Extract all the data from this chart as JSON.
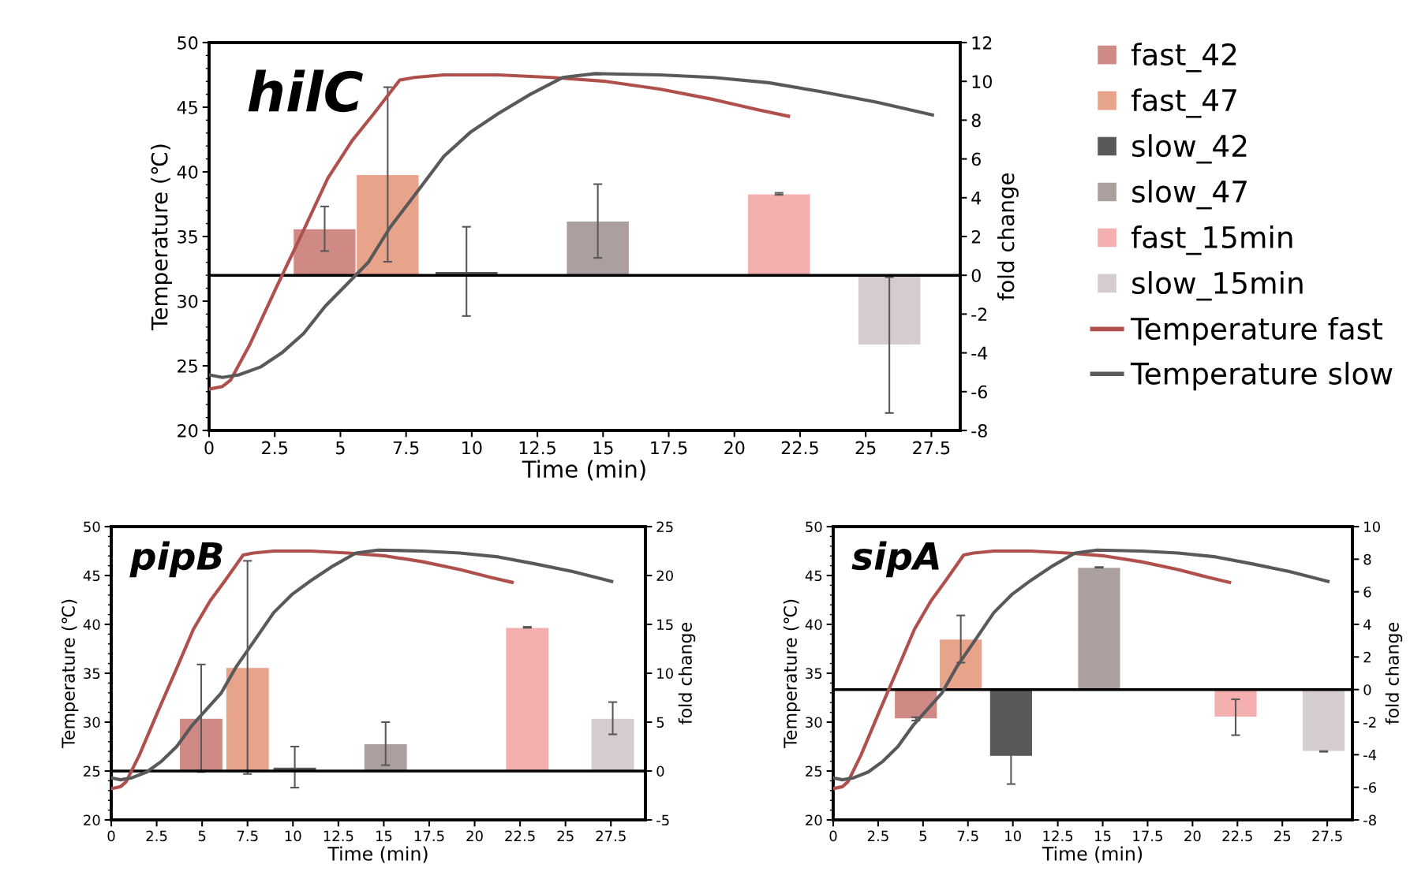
{
  "chart_data": [
    {
      "type": "bar",
      "title": "hilC",
      "xlabel": "Time (min)",
      "ylabel": "Temperature (℃)",
      "y2label": "fold change",
      "xlim": [
        0,
        28.6
      ],
      "xticks": [
        0,
        2.5,
        5,
        7.5,
        10,
        12.5,
        15,
        17.5,
        20,
        22.5,
        25,
        27.5
      ],
      "ylim": [
        20,
        50
      ],
      "yticks": [
        20,
        25,
        30,
        35,
        40,
        45,
        50
      ],
      "y2lim": [
        -8,
        12
      ],
      "y2ticks": [
        -8,
        -6,
        -4,
        -2,
        0,
        2,
        4,
        6,
        8,
        10,
        12
      ],
      "grid": false,
      "legend": "right",
      "ref_lines": [
        {
          "axis": "y2",
          "value": 0,
          "color": "#000000"
        }
      ],
      "series": [
        {
          "name": "fast_42",
          "axis": "y2",
          "color": "#d08a85",
          "x": [
            4.4
          ],
          "values": [
            2.4
          ],
          "errors": [
            1.15
          ]
        },
        {
          "name": "fast_47",
          "axis": "y2",
          "color": "#e8a38b",
          "x": [
            6.8
          ],
          "values": [
            5.2
          ],
          "errors": [
            4.5
          ]
        },
        {
          "name": "slow_42",
          "axis": "y2",
          "color": "#595959",
          "x": [
            9.8
          ],
          "values": [
            0.2
          ],
          "errors": [
            2.3
          ]
        },
        {
          "name": "slow_47",
          "axis": "y2",
          "color": "#aba09e",
          "x": [
            14.8
          ],
          "values": [
            2.8
          ],
          "errors": [
            1.9
          ]
        },
        {
          "name": "fast_15min",
          "axis": "y2",
          "color": "#f4b0ae",
          "x": [
            21.7
          ],
          "values": [
            4.2
          ],
          "errors": [
            0.05
          ]
        },
        {
          "name": "slow_15min",
          "axis": "y2",
          "color": "#d5cdcd",
          "x": [
            25.9
          ],
          "values": [
            -3.6
          ],
          "errors": [
            3.5
          ]
        },
        {
          "name": "Temperature fast",
          "type": "line",
          "axis": "y",
          "color": "#b0504c",
          "x": [
            0,
            0.51,
            0.82,
            1.54,
            2.57,
            3.6,
            4.52,
            5.44,
            6.27,
            7.26,
            7.81,
            8.94,
            11.0,
            13.05,
            15.1,
            17.16,
            19.2,
            20.9,
            22.06
          ],
          "values": [
            23.2,
            23.4,
            23.9,
            26.6,
            31.1,
            35.5,
            39.5,
            42.4,
            44.5,
            47.1,
            47.3,
            47.5,
            47.5,
            47.3,
            47.0,
            46.4,
            45.6,
            44.8,
            44.3
          ]
        },
        {
          "name": "Temperature slow",
          "type": "line",
          "axis": "y",
          "color": "#595959",
          "x": [
            0,
            0.51,
            1.13,
            1.95,
            2.77,
            3.6,
            4.42,
            5.24,
            6.06,
            6.89,
            7.9,
            8.94,
            9.97,
            11.0,
            12.23,
            13.46,
            14.7,
            17.16,
            19.2,
            21.3,
            23.3,
            25.4,
            27.54
          ],
          "values": [
            24.3,
            24.1,
            24.3,
            24.9,
            26.0,
            27.5,
            29.6,
            31.3,
            33.0,
            35.7,
            38.4,
            41.2,
            43.1,
            44.5,
            46.0,
            47.3,
            47.6,
            47.5,
            47.3,
            46.9,
            46.2,
            45.4,
            44.4
          ]
        }
      ]
    },
    {
      "type": "bar",
      "title": "pipB",
      "xlabel": "Time (min)",
      "ylabel": "Temperature (℃)",
      "y2label": "fold change",
      "xlim": [
        0,
        29.4
      ],
      "xticks": [
        0,
        2.5,
        5,
        7.5,
        10,
        12.5,
        15,
        17.5,
        20,
        22.5,
        25,
        27.5
      ],
      "ylim": [
        20,
        50
      ],
      "yticks": [
        20,
        25,
        30,
        35,
        40,
        45,
        50
      ],
      "y2lim": [
        -5,
        25
      ],
      "y2ticks": [
        -5,
        0,
        5,
        10,
        15,
        20,
        25
      ],
      "grid": false,
      "ref_lines": [
        {
          "axis": "y2",
          "value": 0,
          "color": "#000000"
        }
      ],
      "series": [
        {
          "axis": "y2",
          "color": "#d08a85",
          "x": [
            4.95
          ],
          "values": [
            5.4
          ],
          "errors": [
            5.5
          ]
        },
        {
          "axis": "y2",
          "color": "#e8a38b",
          "x": [
            7.5
          ],
          "values": [
            10.6
          ],
          "errors": [
            10.9
          ]
        },
        {
          "axis": "y2",
          "color": "#595959",
          "x": [
            10.1
          ],
          "values": [
            0.4
          ],
          "errors": [
            2.1
          ]
        },
        {
          "axis": "y2",
          "color": "#aba09e",
          "x": [
            15.1
          ],
          "values": [
            2.8
          ],
          "errors": [
            2.2
          ]
        },
        {
          "axis": "y2",
          "color": "#f4b0ae",
          "x": [
            22.9
          ],
          "values": [
            14.7
          ],
          "errors": [
            0.05
          ]
        },
        {
          "axis": "y2",
          "color": "#d5cdcd",
          "x": [
            27.6
          ],
          "values": [
            5.4
          ],
          "errors": [
            1.65
          ]
        },
        {
          "type": "line",
          "axis": "y",
          "color": "#b0504c",
          "x": [
            0,
            0.51,
            0.82,
            1.54,
            2.57,
            3.6,
            4.52,
            5.44,
            6.27,
            7.26,
            7.81,
            8.94,
            11.0,
            13.05,
            15.1,
            17.16,
            19.2,
            20.9,
            22.06
          ],
          "values": [
            23.2,
            23.4,
            23.9,
            26.6,
            31.1,
            35.5,
            39.5,
            42.4,
            44.5,
            47.1,
            47.3,
            47.5,
            47.5,
            47.3,
            47.0,
            46.4,
            45.6,
            44.8,
            44.3
          ]
        },
        {
          "type": "line",
          "axis": "y",
          "color": "#595959",
          "x": [
            0,
            0.51,
            1.13,
            1.95,
            2.77,
            3.6,
            4.42,
            5.24,
            6.06,
            6.89,
            7.9,
            8.94,
            9.97,
            11.0,
            12.23,
            13.46,
            14.7,
            17.16,
            19.2,
            21.3,
            23.3,
            25.4,
            27.54
          ],
          "values": [
            24.3,
            24.1,
            24.3,
            24.9,
            26.0,
            27.5,
            29.6,
            31.3,
            33.0,
            35.7,
            38.4,
            41.2,
            43.1,
            44.5,
            46.0,
            47.3,
            47.6,
            47.5,
            47.3,
            46.9,
            46.2,
            45.4,
            44.4
          ]
        }
      ]
    },
    {
      "type": "bar",
      "title": "sipA",
      "xlabel": "Time (min)",
      "ylabel": "Temperature (℃)",
      "y2label": "fold change",
      "xlim": [
        0,
        28.9
      ],
      "xticks": [
        0,
        2.5,
        5,
        7.5,
        10,
        12.5,
        15,
        17.5,
        20,
        22.5,
        25,
        27.5
      ],
      "ylim": [
        20,
        50
      ],
      "yticks": [
        20,
        25,
        30,
        35,
        40,
        45,
        50
      ],
      "y2lim": [
        -8,
        10
      ],
      "y2ticks": [
        -8,
        -6,
        -4,
        -2,
        0,
        2,
        4,
        6,
        8,
        10
      ],
      "grid": false,
      "ref_lines": [
        {
          "axis": "y2",
          "value": 0,
          "color": "#000000"
        }
      ],
      "series": [
        {
          "axis": "y2",
          "color": "#d08a85",
          "x": [
            4.6
          ],
          "values": [
            -1.8
          ],
          "errors": [
            0.1
          ]
        },
        {
          "axis": "y2",
          "color": "#e8a38b",
          "x": [
            7.1
          ],
          "values": [
            3.1
          ],
          "errors": [
            1.45
          ]
        },
        {
          "axis": "y2",
          "color": "#595959",
          "x": [
            9.9
          ],
          "values": [
            -4.1
          ],
          "errors": [
            1.7
          ]
        },
        {
          "axis": "y2",
          "color": "#aba09e",
          "x": [
            14.8
          ],
          "values": [
            7.5
          ],
          "errors": [
            0.02
          ]
        },
        {
          "axis": "y2",
          "color": "#f4b0ae",
          "x": [
            22.4
          ],
          "values": [
            -1.7
          ],
          "errors": [
            1.1
          ]
        },
        {
          "axis": "y2",
          "color": "#d5cdcd",
          "x": [
            27.3
          ],
          "values": [
            -3.8
          ],
          "errors": [
            0.02
          ]
        },
        {
          "type": "line",
          "axis": "y",
          "color": "#b0504c",
          "x": [
            0,
            0.51,
            0.82,
            1.54,
            2.57,
            3.6,
            4.52,
            5.44,
            6.27,
            7.26,
            7.81,
            8.94,
            11.0,
            13.05,
            15.1,
            17.16,
            19.2,
            20.9,
            22.06
          ],
          "values": [
            23.2,
            23.4,
            23.9,
            26.6,
            31.1,
            35.5,
            39.5,
            42.4,
            44.5,
            47.1,
            47.3,
            47.5,
            47.5,
            47.3,
            47.0,
            46.4,
            45.6,
            44.8,
            44.3
          ]
        },
        {
          "type": "line",
          "axis": "y",
          "color": "#595959",
          "x": [
            0,
            0.51,
            1.13,
            1.95,
            2.77,
            3.6,
            4.42,
            5.24,
            6.06,
            6.89,
            7.9,
            8.94,
            9.97,
            11.0,
            12.23,
            13.46,
            14.7,
            17.16,
            19.2,
            21.3,
            23.3,
            25.4,
            27.54
          ],
          "values": [
            24.3,
            24.1,
            24.3,
            24.9,
            26.0,
            27.5,
            29.6,
            31.3,
            33.0,
            35.7,
            38.4,
            41.2,
            43.1,
            44.5,
            46.0,
            47.3,
            47.6,
            47.5,
            47.3,
            46.9,
            46.2,
            45.4,
            44.4
          ]
        }
      ]
    }
  ]
}
